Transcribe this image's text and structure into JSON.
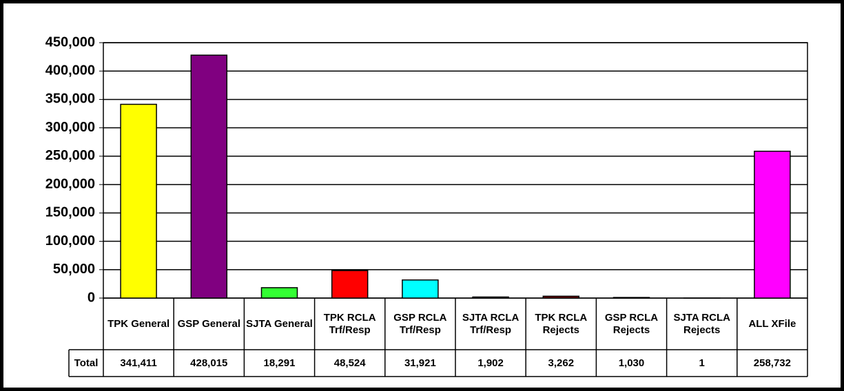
{
  "chart_data": {
    "type": "bar",
    "categories": [
      "TPK General",
      "GSP General",
      "SJTA General",
      "TPK RCLA Trf/Resp",
      "GSP RCLA Trf/Resp",
      "SJTA RCLA Trf/Resp",
      "TPK RCLA Rejects",
      "GSP RCLA Rejects",
      "SJTA RCLA Rejects",
      "ALL XFile"
    ],
    "series": [
      {
        "name": "Total",
        "colors": [
          "#ffff00",
          "#800080",
          "#33ff33",
          "#ff0000",
          "#00ffff",
          "#000080",
          "#800000",
          "#008080",
          "#0000ff",
          "#ff00ff"
        ],
        "values": [
          341411,
          428015,
          18291,
          48524,
          31921,
          1902,
          3262,
          1030,
          1,
          258732
        ],
        "value_labels": [
          "341,411",
          "428,015",
          "18,291",
          "48,524",
          "31,921",
          "1,902",
          "3,262",
          "1,030",
          "1",
          "258,732"
        ]
      }
    ],
    "ylim": [
      0,
      450000
    ],
    "yticks": [
      0,
      {
        "value": 50000,
        "label": "50,000"
      },
      {
        "value": 100000,
        "label": "100,000"
      },
      {
        "value": 150000,
        "label": "150,000"
      },
      {
        "value": 200000,
        "label": "200,000"
      },
      {
        "value": 250000,
        "label": "250,000"
      },
      {
        "value": 300000,
        "label": "300,000"
      },
      {
        "value": 350000,
        "label": "350,000"
      },
      {
        "value": 400000,
        "label": "400,000"
      },
      {
        "value": 450000,
        "label": "450,000"
      }
    ],
    "grid": true
  }
}
